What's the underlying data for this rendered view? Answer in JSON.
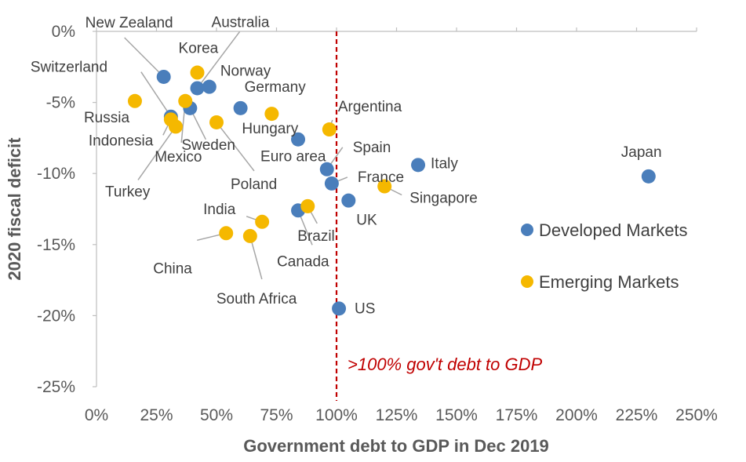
{
  "chart_data": {
    "type": "scatter",
    "title": "",
    "xlabel": "Government debt to GDP in Dec 2019",
    "ylabel": "2020 fiscal deficit",
    "xlim": [
      0,
      250
    ],
    "ylim": [
      -25,
      0
    ],
    "x_ticks": [
      0,
      25,
      50,
      75,
      100,
      125,
      150,
      175,
      200,
      225,
      250
    ],
    "x_tick_labels": [
      "0%",
      "25%",
      "50%",
      "75%",
      "100%",
      "125%",
      "150%",
      "175%",
      "200%",
      "225%",
      "250%"
    ],
    "y_ticks": [
      0,
      -5,
      -10,
      -15,
      -20,
      -25
    ],
    "y_tick_labels": [
      "0%",
      "-5%",
      "-10%",
      "-15%",
      "-20%",
      "-25%"
    ],
    "grid": false,
    "legend_position": "right",
    "colors": {
      "Developed Markets": "#4a7ebb",
      "Emerging Markets": "#f5b800",
      "reference_line": "#c00000"
    },
    "series": [
      {
        "name": "Developed Markets",
        "points": [
          {
            "label": "New Zealand",
            "x": 28,
            "y": -3.2
          },
          {
            "label": "Australia",
            "x": 42,
            "y": -4.0
          },
          {
            "label": "Norway",
            "x": 47,
            "y": -3.9
          },
          {
            "label": "Switzerland",
            "x": 31,
            "y": -6.0
          },
          {
            "label": "Sweden",
            "x": 39,
            "y": -5.4
          },
          {
            "label": "Germany",
            "x": 60,
            "y": -5.4
          },
          {
            "label": "Euro area",
            "x": 84,
            "y": -7.6
          },
          {
            "label": "Spain",
            "x": 96,
            "y": -9.7
          },
          {
            "label": "France",
            "x": 98,
            "y": -10.7
          },
          {
            "label": "Italy",
            "x": 134,
            "y": -9.4
          },
          {
            "label": "Japan",
            "x": 230,
            "y": -10.2
          },
          {
            "label": "UK",
            "x": 105,
            "y": -11.9
          },
          {
            "label": "Canada",
            "x": 84,
            "y": -12.6
          },
          {
            "label": "US",
            "x": 101,
            "y": -19.5
          }
        ]
      },
      {
        "name": "Emerging Markets",
        "points": [
          {
            "label": "Korea",
            "x": 42,
            "y": -2.9
          },
          {
            "label": "Russia",
            "x": 16,
            "y": -4.9
          },
          {
            "label": "Mexico",
            "x": 37,
            "y": -4.9
          },
          {
            "label": "Indonesia",
            "x": 31,
            "y": -6.2
          },
          {
            "label": "Turkey",
            "x": 33,
            "y": -6.7
          },
          {
            "label": "Poland",
            "x": 50,
            "y": -6.4
          },
          {
            "label": "Hungary",
            "x": 73,
            "y": -5.8
          },
          {
            "label": "Argentina",
            "x": 97,
            "y": -6.9
          },
          {
            "label": "Singapore",
            "x": 120,
            "y": -10.9
          },
          {
            "label": "Brazil",
            "x": 88,
            "y": -12.3
          },
          {
            "label": "India",
            "x": 69,
            "y": -13.4
          },
          {
            "label": "China",
            "x": 54,
            "y": -14.2
          },
          {
            "label": "South Africa",
            "x": 64,
            "y": -14.4
          }
        ]
      }
    ],
    "reference_line": {
      "x": 100,
      "label": ">100% gov't debt to GDP"
    }
  }
}
